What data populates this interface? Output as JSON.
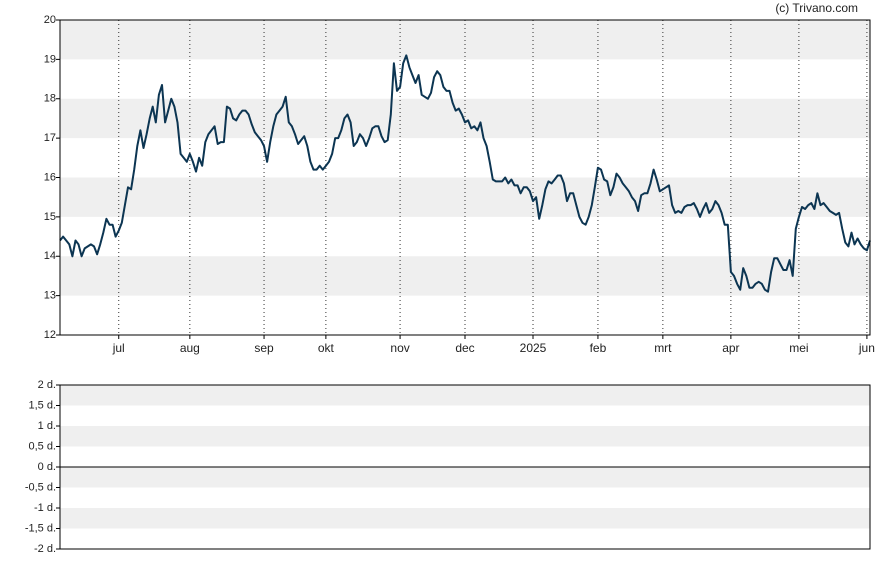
{
  "source": "(c) Trivano.com",
  "chart_data": [
    {
      "type": "line",
      "color": "#0c3552",
      "xlim": [
        0,
        262
      ],
      "ylim": [
        12,
        20
      ],
      "yticks": [
        12,
        13,
        14,
        15,
        16,
        17,
        18,
        19,
        20
      ],
      "xticks": [
        {
          "value": 19,
          "label": "jul"
        },
        {
          "value": 42,
          "label": "aug"
        },
        {
          "value": 66,
          "label": "sep"
        },
        {
          "value": 86,
          "label": "okt"
        },
        {
          "value": 110,
          "label": "nov"
        },
        {
          "value": 131,
          "label": "dec"
        },
        {
          "value": 153,
          "label": "2025"
        },
        {
          "value": 174,
          "label": "feb"
        },
        {
          "value": 195,
          "label": "mrt"
        },
        {
          "value": 217,
          "label": "apr"
        },
        {
          "value": 239,
          "label": "mei"
        },
        {
          "value": 261,
          "label": "jun"
        }
      ],
      "x": [
        0,
        1,
        2,
        3,
        4,
        5,
        6,
        7,
        8,
        9,
        10,
        11,
        12,
        13,
        14,
        15,
        16,
        17,
        18,
        19,
        20,
        21,
        22,
        23,
        24,
        25,
        26,
        27,
        28,
        29,
        30,
        31,
        32,
        33,
        34,
        35,
        36,
        37,
        38,
        39,
        40,
        41,
        42,
        43,
        44,
        45,
        46,
        47,
        48,
        49,
        50,
        51,
        52,
        53,
        54,
        55,
        56,
        57,
        58,
        59,
        60,
        61,
        62,
        63,
        64,
        65,
        66,
        67,
        68,
        69,
        70,
        71,
        72,
        73,
        74,
        75,
        76,
        77,
        78,
        79,
        80,
        81,
        82,
        83,
        84,
        85,
        86,
        87,
        88,
        89,
        90,
        91,
        92,
        93,
        94,
        95,
        96,
        97,
        98,
        99,
        100,
        101,
        102,
        103,
        104,
        105,
        106,
        107,
        108,
        109,
        110,
        111,
        112,
        113,
        114,
        115,
        116,
        117,
        118,
        119,
        120,
        121,
        122,
        123,
        124,
        125,
        126,
        127,
        128,
        129,
        130,
        131,
        132,
        133,
        134,
        135,
        136,
        137,
        138,
        139,
        140,
        141,
        142,
        143,
        144,
        145,
        146,
        147,
        148,
        149,
        150,
        151,
        152,
        153,
        154,
        155,
        156,
        157,
        158,
        159,
        160,
        161,
        162,
        163,
        164,
        165,
        166,
        167,
        168,
        169,
        170,
        171,
        172,
        173,
        174,
        175,
        176,
        177,
        178,
        179,
        180,
        181,
        182,
        183,
        184,
        185,
        186,
        187,
        188,
        189,
        190,
        191,
        192,
        193,
        194,
        195,
        196,
        197,
        198,
        199,
        200,
        201,
        202,
        203,
        204,
        205,
        206,
        207,
        208,
        209,
        210,
        211,
        212,
        213,
        214,
        215,
        216,
        217,
        218,
        219,
        220,
        221,
        222,
        223,
        224,
        225,
        226,
        227,
        228,
        229,
        230,
        231,
        232,
        233,
        234,
        235,
        236,
        237,
        238,
        239,
        240,
        241,
        242,
        243,
        244,
        245,
        246,
        247,
        248,
        249,
        250,
        251,
        252,
        253,
        254,
        255,
        256,
        257,
        258,
        259,
        260,
        261,
        262
      ],
      "values": [
        14.4,
        14.5,
        14.4,
        14.3,
        14.0,
        14.4,
        14.3,
        14.0,
        14.2,
        14.25,
        14.3,
        14.25,
        14.05,
        14.3,
        14.6,
        14.95,
        14.8,
        14.8,
        14.5,
        14.65,
        14.85,
        15.3,
        15.75,
        15.7,
        16.2,
        16.8,
        17.2,
        16.75,
        17.1,
        17.5,
        17.8,
        17.4,
        18.1,
        18.35,
        17.4,
        17.7,
        18.0,
        17.8,
        17.4,
        16.6,
        16.5,
        16.4,
        16.6,
        16.4,
        16.15,
        16.5,
        16.3,
        16.9,
        17.1,
        17.2,
        17.3,
        16.85,
        16.9,
        16.9,
        17.8,
        17.75,
        17.5,
        17.45,
        17.6,
        17.7,
        17.7,
        17.6,
        17.35,
        17.15,
        17.05,
        16.95,
        16.8,
        16.4,
        16.9,
        17.3,
        17.6,
        17.7,
        17.8,
        18.05,
        17.4,
        17.3,
        17.1,
        16.85,
        16.95,
        17.05,
        16.8,
        16.4,
        16.2,
        16.2,
        16.3,
        16.2,
        16.3,
        16.4,
        16.6,
        17.0,
        17.0,
        17.2,
        17.5,
        17.6,
        17.4,
        16.8,
        16.9,
        17.1,
        17.0,
        16.8,
        17.0,
        17.25,
        17.3,
        17.3,
        17.05,
        16.9,
        16.95,
        17.6,
        18.9,
        18.2,
        18.3,
        18.9,
        19.1,
        18.8,
        18.6,
        18.4,
        18.6,
        18.1,
        18.05,
        18.0,
        18.15,
        18.55,
        18.7,
        18.6,
        18.3,
        18.2,
        18.2,
        17.9,
        17.7,
        17.75,
        17.6,
        17.4,
        17.45,
        17.25,
        17.3,
        17.2,
        17.4,
        17.0,
        16.8,
        16.4,
        15.95,
        15.9,
        15.9,
        15.9,
        16.0,
        15.85,
        15.95,
        15.8,
        15.8,
        15.6,
        15.75,
        15.75,
        15.65,
        15.4,
        15.5,
        14.95,
        15.3,
        15.7,
        15.9,
        15.85,
        15.95,
        16.05,
        16.05,
        15.85,
        15.4,
        15.6,
        15.6,
        15.3,
        15.0,
        14.85,
        14.8,
        15.0,
        15.3,
        15.75,
        16.25,
        16.2,
        15.95,
        15.9,
        15.55,
        15.75,
        16.1,
        16.0,
        15.85,
        15.75,
        15.65,
        15.5,
        15.4,
        15.15,
        15.55,
        15.6,
        15.6,
        15.85,
        16.2,
        15.95,
        15.65,
        15.7,
        15.75,
        15.8,
        15.3,
        15.1,
        15.15,
        15.1,
        15.25,
        15.3,
        15.3,
        15.35,
        15.2,
        15.0,
        15.2,
        15.35,
        15.1,
        15.2,
        15.4,
        15.3,
        15.1,
        14.8,
        14.8,
        13.6,
        13.5,
        13.3,
        13.15,
        13.7,
        13.5,
        13.2,
        13.2,
        13.3,
        13.35,
        13.3,
        13.15,
        13.1,
        13.6,
        13.95,
        13.95,
        13.8,
        13.65,
        13.65,
        13.9,
        13.5,
        14.7,
        15.0,
        15.25,
        15.2,
        15.3,
        15.35,
        15.2,
        15.6,
        15.3,
        15.35,
        15.25,
        15.15,
        15.1,
        15.05,
        15.1,
        14.7,
        14.35,
        14.25,
        14.6,
        14.3,
        14.45,
        14.3,
        14.2,
        14.15,
        14.4
      ]
    },
    {
      "type": "line",
      "ylim": [
        -2,
        2
      ],
      "yticks": [
        {
          "value": 2,
          "label": "2 d."
        },
        {
          "value": 1.5,
          "label": "1,5 d."
        },
        {
          "value": 1,
          "label": "1 d."
        },
        {
          "value": 0.5,
          "label": "0,5 d."
        },
        {
          "value": 0,
          "label": "0 d."
        },
        {
          "value": -0.5,
          "label": "-0,5 d."
        },
        {
          "value": -1,
          "label": "-1 d."
        },
        {
          "value": -1.5,
          "label": "-1,5 d."
        },
        {
          "value": -2,
          "label": "-2 d."
        }
      ]
    }
  ]
}
